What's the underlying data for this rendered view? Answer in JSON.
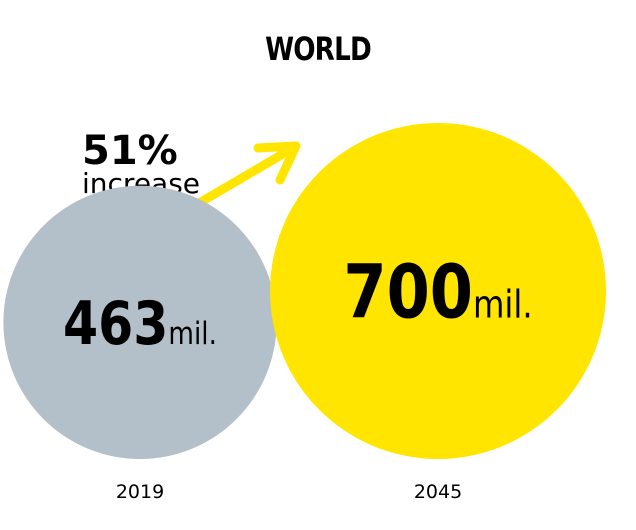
{
  "chart_data": {
    "type": "bubble",
    "title": "WORLD",
    "unit": "mil.",
    "categories": [
      "2019",
      "2045"
    ],
    "values": [
      463,
      700
    ],
    "colors": [
      "#b4c0c9",
      "#ffe500"
    ],
    "annotation": {
      "value": "51%",
      "text": "increase"
    },
    "arrow_color": "#ffe500",
    "legend": "none",
    "grid": false
  }
}
